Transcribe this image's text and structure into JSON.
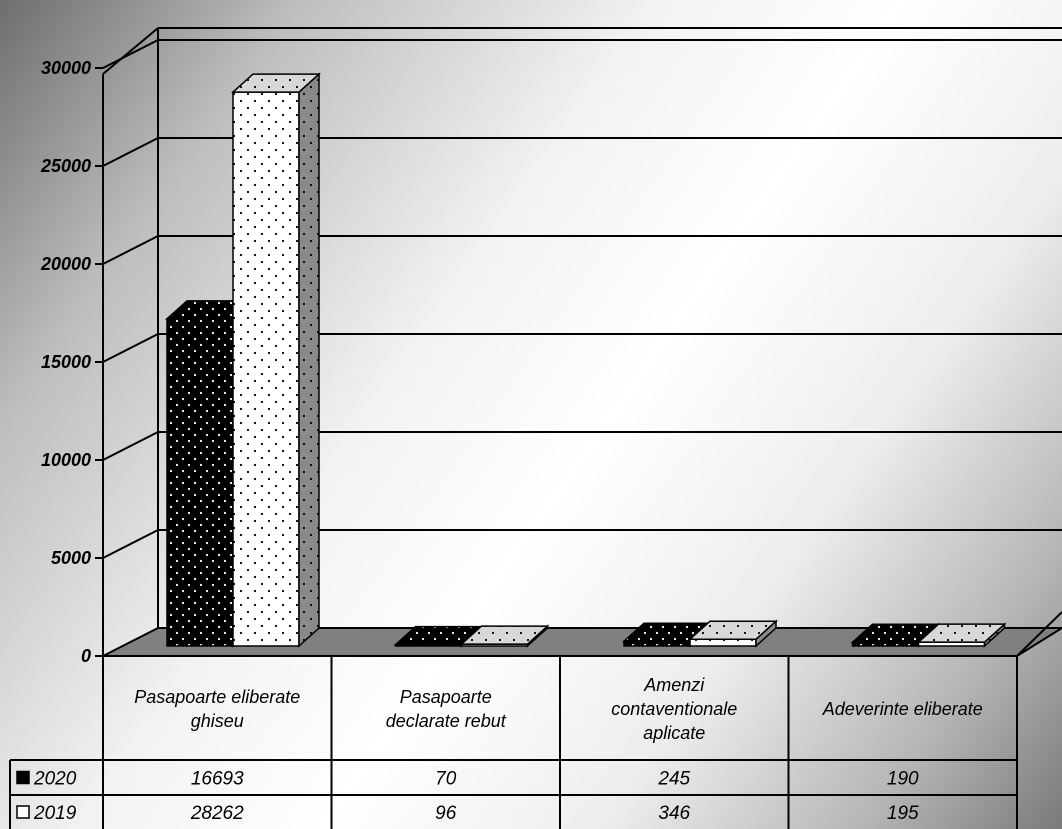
{
  "chart_data": {
    "type": "bar",
    "style": "3d-clustered-column-with-data-table",
    "categories": [
      [
        "Pasapoarte eliberate",
        "ghiseu"
      ],
      [
        "Pasapoarte",
        "declarate rebut"
      ],
      [
        "Amenzi",
        "contaventionale",
        "aplicate"
      ],
      [
        "Adeverinte eliberate"
      ]
    ],
    "series": [
      {
        "name": "2020",
        "values": [
          16693,
          70,
          245,
          190
        ],
        "labels": [
          "16693",
          "70",
          "245",
          "190"
        ],
        "color": "#000000",
        "pattern": "white-dots-on-black"
      },
      {
        "name": "2019",
        "values": [
          28262,
          96,
          346,
          195
        ],
        "labels": [
          "28262",
          "96",
          "346",
          "195"
        ],
        "color": "#ffffff",
        "pattern": "black-dots-on-white"
      }
    ],
    "yticks": [
      "0",
      "5000",
      "10000",
      "15000",
      "20000",
      "25000",
      "30000"
    ],
    "ylim": [
      0,
      30000
    ],
    "grid": true,
    "legend": "data-table-left",
    "floor_color": "#808080"
  }
}
